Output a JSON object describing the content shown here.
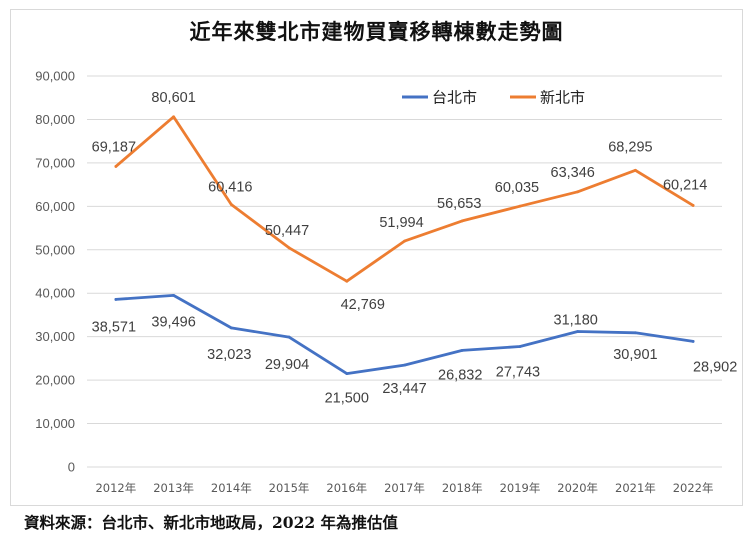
{
  "chart_data": {
    "type": "line",
    "title": "近年來雙北市建物買賣移轉棟數走勢圖",
    "xlabel": "",
    "ylabel": "",
    "categories": [
      "2012年",
      "2013年",
      "2014年",
      "2015年",
      "2016年",
      "2017年",
      "2018年",
      "2019年",
      "2020年",
      "2021年",
      "2022年"
    ],
    "ylim": [
      0,
      90000
    ],
    "yticks": [
      "0",
      "10,000",
      "20,000",
      "30,000",
      "40,000",
      "50,000",
      "60,000",
      "70,000",
      "80,000",
      "90,000"
    ],
    "grid": true,
    "legend_position": "top-right",
    "series": [
      {
        "name": "台北市",
        "color": "#4472c4",
        "values": [
          38571,
          39496,
          32023,
          29904,
          21500,
          23447,
          26832,
          27743,
          31180,
          30901,
          28902
        ],
        "labels": [
          "38,571",
          "39,496",
          "32,023",
          "29,904",
          "21,500",
          "23,447",
          "26,832",
          "27,743",
          "31,180",
          "30,901",
          "28,902"
        ]
      },
      {
        "name": "新北市",
        "color": "#ed7d31",
        "values": [
          69187,
          80601,
          60416,
          50447,
          42769,
          51994,
          56653,
          60035,
          63346,
          68295,
          60214
        ],
        "labels": [
          "69,187",
          "80,601",
          "60,416",
          "50,447",
          "42,769",
          "51,994",
          "56,653",
          "60,035",
          "63,346",
          "68,295",
          "60,214"
        ]
      }
    ]
  },
  "source_note": "資料來源：台北市、新北市地政局，2022 年為推估值"
}
